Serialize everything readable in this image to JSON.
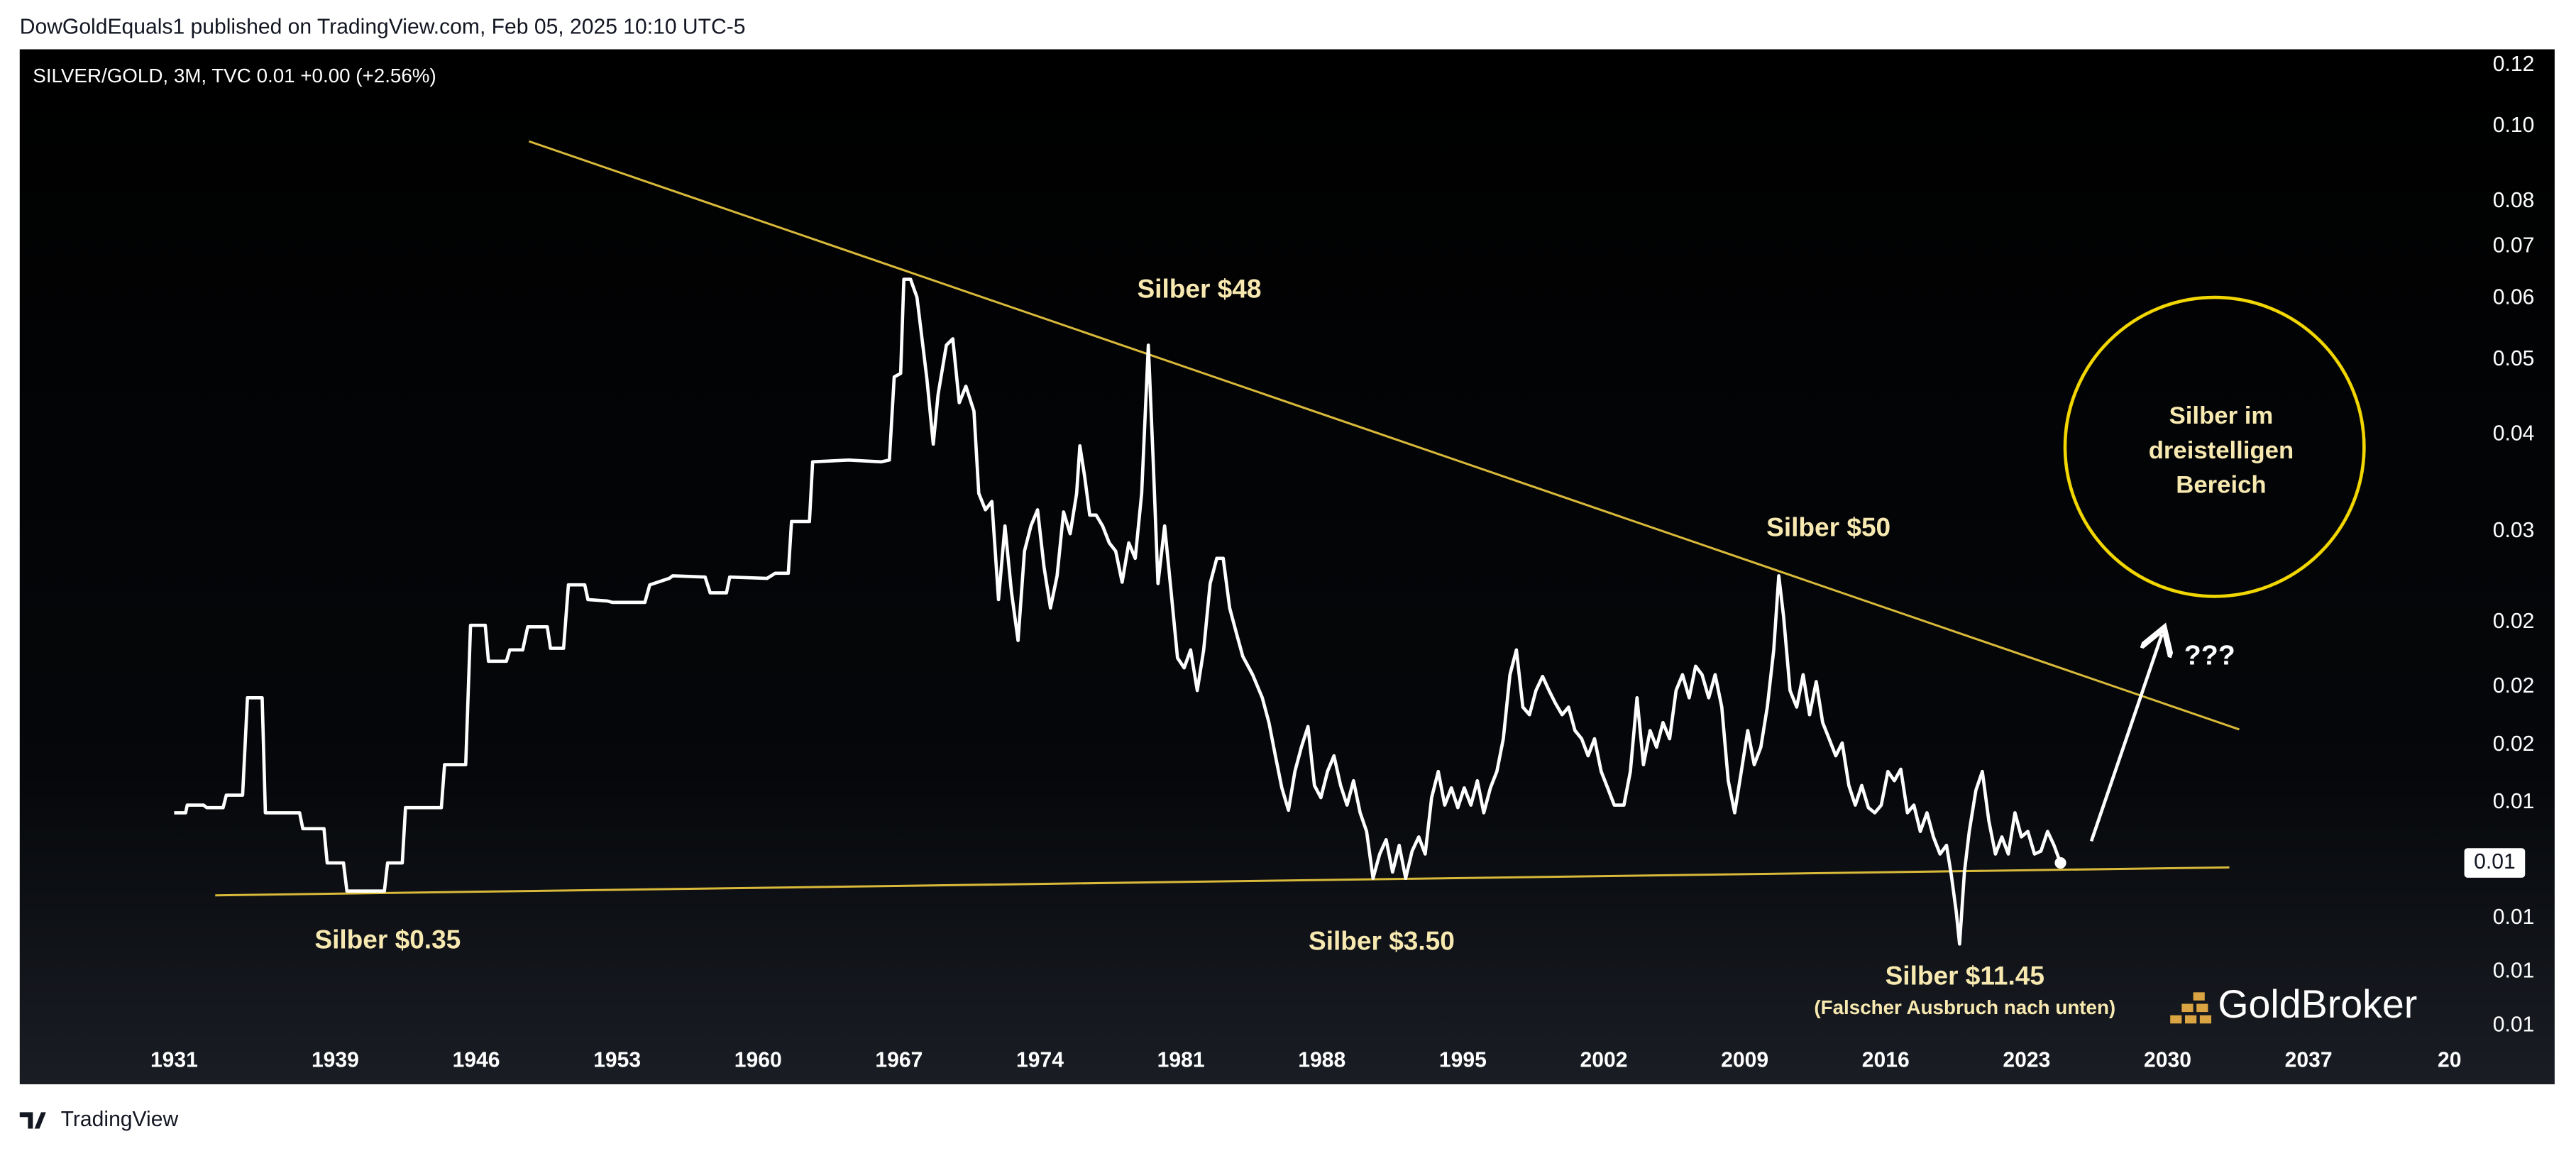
{
  "header": {
    "byline": "DowGoldEquals1 published on TradingView.com, Feb 05, 2025 10:10 UTC-5"
  },
  "chart_data": {
    "type": "line",
    "title": "SILVER/GOLD, 3M, TVC  0.01  +0.00 (+2.56%)",
    "color": "#ffffff",
    "log_scale": true,
    "grid": false,
    "xlim": [
      1923.33,
      2044.49
    ],
    "ylim": [
      0.0058,
      0.1258
    ],
    "xticks": [
      1931,
      1939,
      1946,
      1953,
      1960,
      1967,
      1974,
      1981,
      1988,
      1995,
      2002,
      2009,
      2016,
      2023,
      2030,
      2037,
      {
        "value": 2044,
        "label": "20"
      }
    ],
    "yticks": [
      0.12,
      {
        "value": 0.1,
        "label": "0.10"
      },
      0.08,
      0.07,
      0.06,
      0.05,
      0.04,
      0.03,
      {
        "value": 0.0229,
        "label": "0.02"
      },
      {
        "value": 0.0189,
        "label": "0.02"
      },
      {
        "value": 0.0159,
        "label": "0.02"
      },
      {
        "value": 0.0134,
        "label": "0.01"
      },
      {
        "value": 0.0095,
        "label": "0.01"
      },
      {
        "value": 0.0081,
        "label": "0.01"
      },
      {
        "value": 0.0069,
        "label": "0.01"
      }
    ],
    "last_price": {
      "value": 0.0112,
      "label": "0.01"
    },
    "x": [
      1931.0,
      1931.57,
      1931.65,
      1932.46,
      1932.62,
      1933.43,
      1933.59,
      1934.4,
      1934.64,
      1935.37,
      1935.53,
      1937.23,
      1937.39,
      1938.44,
      1938.6,
      1939.41,
      1939.58,
      1941.44,
      1941.6,
      1942.33,
      1942.49,
      1944.27,
      1944.43,
      1945.48,
      1945.72,
      1946.45,
      1946.61,
      1947.5,
      1947.67,
      1948.31,
      1948.56,
      1949.53,
      1949.69,
      1950.34,
      1950.58,
      1951.39,
      1951.55,
      1952.52,
      1952.76,
      1954.38,
      1954.62,
      1955.59,
      1955.76,
      1957.37,
      1957.62,
      1958.43,
      1958.59,
      1960.45,
      1960.85,
      1961.5,
      1961.66,
      1962.55,
      1962.71,
      1964.49,
      1966.11,
      1966.52,
      1966.76,
      1967.08,
      1967.24,
      1967.57,
      1967.89,
      1968.38,
      1968.7,
      1968.94,
      1969.35,
      1969.67,
      1969.99,
      1970.32,
      1970.72,
      1970.96,
      1971.29,
      1971.61,
      1971.94,
      1972.26,
      1972.58,
      1972.91,
      1973.23,
      1973.55,
      1973.88,
      1974.2,
      1974.52,
      1974.85,
      1975.17,
      1975.5,
      1975.82,
      1975.98,
      1976.22,
      1976.47,
      1976.79,
      1977.11,
      1977.44,
      1977.76,
      1978.08,
      1978.41,
      1978.73,
      1979.05,
      1979.38,
      1979.62,
      1979.86,
      1980.19,
      1980.51,
      1980.83,
      1981.16,
      1981.48,
      1981.81,
      1982.13,
      1982.45,
      1982.78,
      1983.1,
      1983.42,
      1983.75,
      1984.07,
      1984.56,
      1985.04,
      1985.37,
      1985.69,
      1986.01,
      1986.34,
      1986.66,
      1986.98,
      1987.31,
      1987.63,
      1987.95,
      1988.28,
      1988.6,
      1988.93,
      1989.25,
      1989.57,
      1989.9,
      1990.22,
      1990.54,
      1990.87,
      1991.19,
      1991.51,
      1991.84,
      1992.16,
      1992.48,
      1992.81,
      1993.13,
      1993.45,
      1993.78,
      1994.1,
      1994.43,
      1994.75,
      1995.07,
      1995.4,
      1995.72,
      1996.04,
      1996.37,
      1996.69,
      1997.01,
      1997.34,
      1997.66,
      1997.98,
      1998.31,
      1998.63,
      1998.96,
      1999.28,
      1999.6,
      1999.93,
      2000.25,
      2000.57,
      2000.9,
      2001.22,
      2001.54,
      2001.87,
      2002.19,
      2002.52,
      2003.0,
      2003.32,
      2003.65,
      2003.97,
      2004.3,
      2004.62,
      2004.94,
      2005.27,
      2005.59,
      2005.91,
      2006.24,
      2006.56,
      2006.88,
      2007.21,
      2007.53,
      2007.86,
      2008.18,
      2008.5,
      2008.83,
      2009.15,
      2009.47,
      2009.8,
      2010.12,
      2010.44,
      2010.69,
      2010.93,
      2011.25,
      2011.58,
      2011.9,
      2012.22,
      2012.55,
      2012.87,
      2013.19,
      2013.52,
      2013.84,
      2014.17,
      2014.49,
      2014.81,
      2015.14,
      2015.46,
      2015.78,
      2016.11,
      2016.43,
      2016.75,
      2017.08,
      2017.4,
      2017.72,
      2018.05,
      2018.37,
      2018.7,
      2019.02,
      2019.26,
      2019.5,
      2019.67,
      2019.91,
      2020.15,
      2020.48,
      2020.8,
      2021.12,
      2021.45,
      2021.77,
      2022.09,
      2022.42,
      2022.74,
      2023.06,
      2023.39,
      2023.71,
      2024.04,
      2024.36,
      2024.68
    ],
    "values": [
      0.013,
      0.013,
      0.0133,
      0.0133,
      0.0132,
      0.0132,
      0.0137,
      0.0137,
      0.0183,
      0.0183,
      0.013,
      0.013,
      0.0124,
      0.0124,
      0.0112,
      0.0112,
      0.0103,
      0.0103,
      0.0112,
      0.0112,
      0.0132,
      0.0132,
      0.015,
      0.015,
      0.0227,
      0.0227,
      0.0204,
      0.0204,
      0.0211,
      0.0211,
      0.0226,
      0.0226,
      0.0212,
      0.0212,
      0.0256,
      0.0256,
      0.0245,
      0.0244,
      0.0243,
      0.0243,
      0.0256,
      0.0261,
      0.0263,
      0.0262,
      0.025,
      0.025,
      0.0262,
      0.0261,
      0.0265,
      0.0265,
      0.0309,
      0.0309,
      0.0369,
      0.0371,
      0.0369,
      0.0371,
      0.0475,
      0.048,
      0.0635,
      0.0635,
      0.0602,
      0.0473,
      0.0389,
      0.0451,
      0.0522,
      0.0532,
      0.044,
      0.0462,
      0.0429,
      0.0336,
      0.032,
      0.0328,
      0.0245,
      0.0305,
      0.0251,
      0.0217,
      0.0283,
      0.0305,
      0.032,
      0.027,
      0.0239,
      0.0263,
      0.0318,
      0.0298,
      0.0336,
      0.0387,
      0.0353,
      0.0315,
      0.0315,
      0.0305,
      0.029,
      0.0283,
      0.0258,
      0.029,
      0.0277,
      0.0336,
      0.0522,
      0.0371,
      0.0257,
      0.0305,
      0.0251,
      0.0206,
      0.02,
      0.0211,
      0.0187,
      0.0211,
      0.0257,
      0.0277,
      0.0277,
      0.0239,
      0.0222,
      0.0207,
      0.0196,
      0.0183,
      0.017,
      0.0154,
      0.014,
      0.0131,
      0.0147,
      0.0158,
      0.0168,
      0.0141,
      0.0136,
      0.0147,
      0.0154,
      0.0141,
      0.0133,
      0.0143,
      0.013,
      0.0123,
      0.0107,
      0.0115,
      0.012,
      0.0109,
      0.0118,
      0.0107,
      0.0116,
      0.0121,
      0.0115,
      0.0136,
      0.0147,
      0.0133,
      0.014,
      0.0132,
      0.014,
      0.0133,
      0.0143,
      0.013,
      0.014,
      0.0147,
      0.0162,
      0.0196,
      0.0211,
      0.0178,
      0.0174,
      0.0187,
      0.0195,
      0.0187,
      0.018,
      0.0174,
      0.0178,
      0.0166,
      0.0162,
      0.0154,
      0.0162,
      0.0147,
      0.014,
      0.0133,
      0.0133,
      0.0147,
      0.0183,
      0.015,
      0.0166,
      0.0158,
      0.017,
      0.0162,
      0.0187,
      0.0196,
      0.0183,
      0.0201,
      0.0196,
      0.0183,
      0.0196,
      0.0178,
      0.0143,
      0.013,
      0.0147,
      0.0166,
      0.015,
      0.0158,
      0.0178,
      0.0211,
      0.0263,
      0.0233,
      0.0187,
      0.0178,
      0.0196,
      0.0174,
      0.0192,
      0.017,
      0.0162,
      0.0154,
      0.016,
      0.0141,
      0.0133,
      0.0141,
      0.0132,
      0.013,
      0.0133,
      0.0147,
      0.0143,
      0.0148,
      0.013,
      0.0133,
      0.0123,
      0.013,
      0.0121,
      0.0115,
      0.0118,
      0.0108,
      0.0097,
      0.0088,
      0.0109,
      0.0123,
      0.0139,
      0.0147,
      0.0127,
      0.0115,
      0.0121,
      0.0115,
      0.013,
      0.0121,
      0.0123,
      0.0115,
      0.0116,
      0.0123,
      0.0118,
      0.0112
    ],
    "annotations": [
      "Silber $48",
      "Silber $0.35",
      "Silber $3.50",
      "Silber $50",
      "Silber $11.45",
      "(Falscher Ausbruch nach unten)",
      "???"
    ],
    "circle_text": [
      "Silber im",
      "dreistelligen",
      "Bereich"
    ],
    "watermark": "GoldBroker"
  },
  "footer": {
    "brand": "TradingView"
  }
}
